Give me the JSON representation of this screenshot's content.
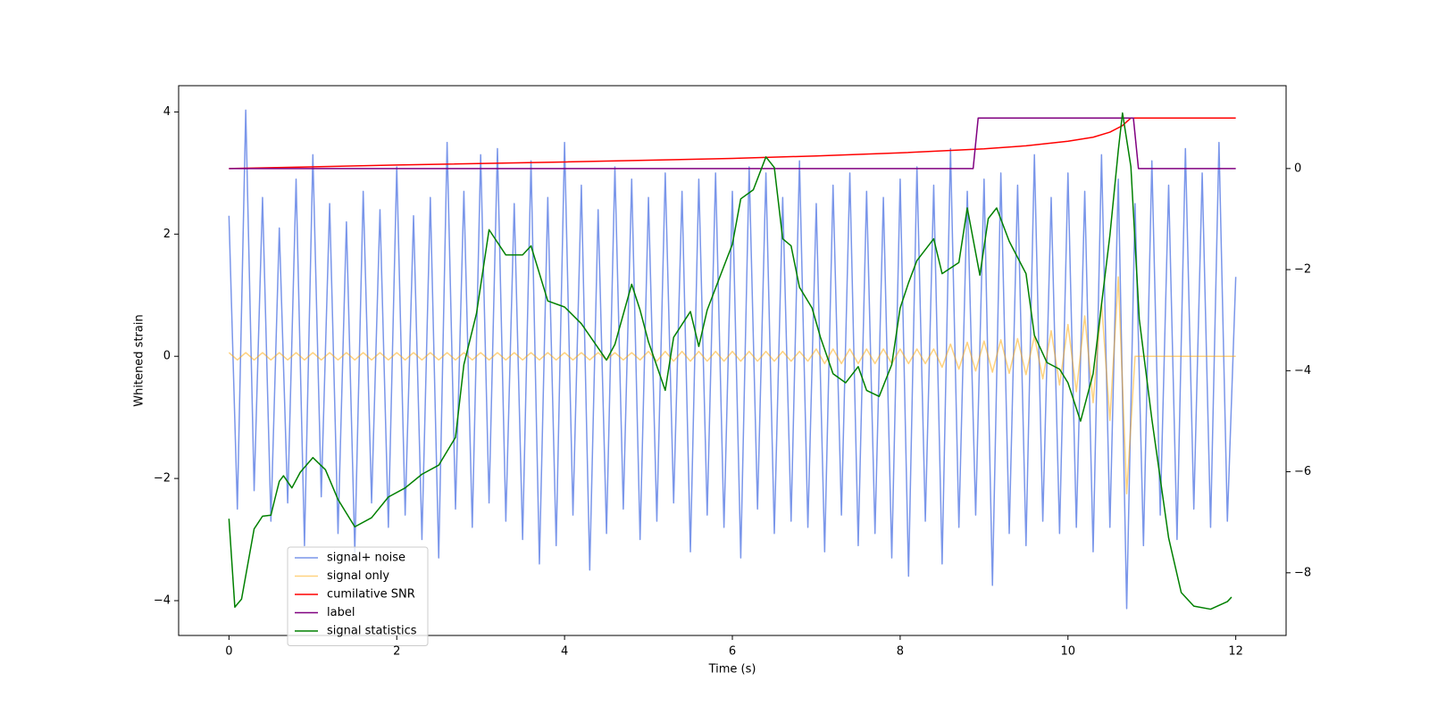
{
  "chart_data": {
    "type": "line",
    "xlabel": "Time (s)",
    "ylabel": "Whitened strain",
    "xlim": [
      -0.6,
      12.6
    ],
    "xticks": [
      0,
      2,
      4,
      6,
      8,
      10,
      12
    ],
    "ylim": [
      -4.57,
      4.43
    ],
    "yticks": [
      {
        "value": -4,
        "label": "−4"
      },
      {
        "value": -2,
        "label": "−2"
      },
      0,
      2,
      4
    ],
    "y2lim": [
      -9.24,
      1.64
    ],
    "y2ticks": [
      {
        "value": -8,
        "label": "−8"
      },
      {
        "value": -6,
        "label": "−6"
      },
      {
        "value": -4,
        "label": "−4"
      },
      {
        "value": -2,
        "label": "−2"
      },
      0
    ],
    "series": [
      {
        "name": "signal+ noise",
        "color": "royalblue",
        "x": [
          0,
          0.1,
          0.2,
          0.3,
          0.4,
          0.5,
          0.6,
          0.7,
          0.8,
          0.9,
          1,
          1.1,
          1.2,
          1.3,
          1.4,
          1.5,
          1.6,
          1.7,
          1.8,
          1.9,
          2,
          2.1,
          2.2,
          2.3,
          2.4,
          2.5,
          2.6,
          2.7,
          2.8,
          2.9,
          3,
          3.1,
          3.2,
          3.3,
          3.4,
          3.5,
          3.6,
          3.7,
          3.8,
          3.9,
          4,
          4.1,
          4.2,
          4.3,
          4.4,
          4.5,
          4.6,
          4.7,
          4.8,
          4.9,
          5,
          5.1,
          5.2,
          5.3,
          5.4,
          5.5,
          5.6,
          5.7,
          5.8,
          5.9,
          6,
          6.1,
          6.2,
          6.3,
          6.4,
          6.5,
          6.6,
          6.7,
          6.8,
          6.9,
          7,
          7.1,
          7.2,
          7.3,
          7.4,
          7.5,
          7.6,
          7.7,
          7.8,
          7.9,
          8,
          8.1,
          8.2,
          8.3,
          8.4,
          8.5,
          8.6,
          8.7,
          8.8,
          8.9,
          9,
          9.1,
          9.2,
          9.3,
          9.4,
          9.5,
          9.6,
          9.7,
          9.8,
          9.9,
          10,
          10.1,
          10.2,
          10.3,
          10.4,
          10.5,
          10.6,
          10.7,
          10.8,
          10.9,
          11,
          11.1,
          11.2,
          11.3,
          11.4,
          11.5,
          11.6,
          11.7,
          11.8,
          11.9,
          12
        ],
        "values": [
          2.3,
          -2.5,
          4.03,
          -2.2,
          2.6,
          -2.7,
          2.1,
          -2.4,
          2.9,
          -3.1,
          3.3,
          -2.3,
          2.5,
          -2.9,
          2.2,
          -3.2,
          2.7,
          -2.4,
          2.4,
          -2.8,
          3.1,
          -2.6,
          2.3,
          -3.0,
          2.6,
          -3.3,
          3.5,
          -2.5,
          2.7,
          -2.8,
          3.3,
          -2.4,
          3.4,
          -2.7,
          2.5,
          -3.0,
          3.2,
          -3.4,
          2.6,
          -3.1,
          3.5,
          -2.6,
          2.8,
          -3.5,
          2.4,
          -2.9,
          3.1,
          -2.5,
          2.9,
          -3.0,
          2.6,
          -2.7,
          3.0,
          -2.4,
          2.7,
          -3.2,
          2.9,
          -2.6,
          3.0,
          -2.8,
          2.7,
          -3.3,
          3.1,
          -2.5,
          3.0,
          -2.9,
          2.6,
          -2.7,
          3.2,
          -2.8,
          2.5,
          -3.2,
          2.8,
          -2.6,
          3.0,
          -3.1,
          2.7,
          -2.9,
          2.6,
          -3.3,
          2.9,
          -3.6,
          3.1,
          -2.7,
          2.8,
          -3.4,
          3.4,
          -2.8,
          2.7,
          -2.6,
          2.9,
          -3.75,
          3.0,
          -2.9,
          2.8,
          -3.1,
          3.3,
          -2.7,
          2.6,
          -2.9,
          3.0,
          -2.8,
          2.7,
          -3.2,
          3.3,
          -2.8,
          2.9,
          -4.13,
          2.5,
          -3.1,
          3.2,
          -2.6,
          2.8,
          -3.0,
          3.4,
          -2.5,
          3.0,
          -2.8,
          3.5,
          -2.7,
          1.3
        ]
      },
      {
        "name": "signal only",
        "color": "orange",
        "x": [
          0,
          0.1,
          0.2,
          0.3,
          0.4,
          0.5,
          0.6,
          0.7,
          0.8,
          0.9,
          1,
          1.1,
          1.2,
          1.3,
          1.4,
          1.5,
          1.6,
          1.7,
          1.8,
          1.9,
          2,
          2.1,
          2.2,
          2.3,
          2.4,
          2.5,
          2.6,
          2.7,
          2.8,
          2.9,
          3,
          3.1,
          3.2,
          3.3,
          3.4,
          3.5,
          3.6,
          3.7,
          3.8,
          3.9,
          4,
          4.1,
          4.2,
          4.3,
          4.4,
          4.5,
          4.6,
          4.7,
          4.8,
          4.9,
          5,
          5.1,
          5.2,
          5.3,
          5.4,
          5.5,
          5.6,
          5.7,
          5.8,
          5.9,
          6,
          6.1,
          6.2,
          6.3,
          6.4,
          6.5,
          6.6,
          6.7,
          6.8,
          6.9,
          7,
          7.1,
          7.2,
          7.3,
          7.4,
          7.5,
          7.6,
          7.7,
          7.8,
          7.9,
          8,
          8.1,
          8.2,
          8.3,
          8.4,
          8.5,
          8.6,
          8.7,
          8.8,
          8.9,
          9,
          9.1,
          9.2,
          9.3,
          9.4,
          9.5,
          9.6,
          9.7,
          9.8,
          9.9,
          10,
          10.1,
          10.2,
          10.3,
          10.4,
          10.5,
          10.6,
          10.7,
          10.8,
          10.9,
          11,
          11.1,
          11.2,
          11.3,
          11.4,
          11.5,
          11.6,
          11.7,
          11.8,
          11.9,
          12
        ],
        "values": [
          0.06,
          -0.06,
          0.06,
          -0.06,
          0.06,
          -0.06,
          0.06,
          -0.06,
          0.06,
          -0.06,
          0.06,
          -0.06,
          0.06,
          -0.06,
          0.06,
          -0.06,
          0.06,
          -0.06,
          0.06,
          -0.06,
          0.06,
          -0.06,
          0.06,
          -0.06,
          0.06,
          -0.06,
          0.06,
          -0.06,
          0.06,
          -0.06,
          0.06,
          -0.06,
          0.06,
          -0.06,
          0.06,
          -0.06,
          0.06,
          -0.06,
          0.06,
          -0.06,
          0.06,
          -0.06,
          0.06,
          -0.06,
          0.06,
          -0.06,
          0.06,
          -0.06,
          0.06,
          -0.06,
          0.08,
          -0.08,
          0.08,
          -0.08,
          0.08,
          -0.08,
          0.08,
          -0.08,
          0.08,
          -0.08,
          0.08,
          -0.08,
          0.08,
          -0.08,
          0.08,
          -0.08,
          0.08,
          -0.08,
          0.08,
          -0.08,
          0.12,
          -0.12,
          0.12,
          -0.12,
          0.12,
          -0.12,
          0.12,
          -0.12,
          0.12,
          -0.12,
          0.12,
          -0.12,
          0.12,
          -0.12,
          0.12,
          -0.18,
          0.2,
          -0.21,
          0.23,
          -0.24,
          0.25,
          -0.26,
          0.27,
          -0.28,
          0.29,
          -0.3,
          0.33,
          -0.37,
          0.42,
          -0.47,
          0.52,
          -0.58,
          0.66,
          -0.76,
          0.88,
          -1.05,
          1.3,
          -2.25,
          0,
          0,
          0,
          0,
          0,
          0,
          0,
          0,
          0,
          0,
          0,
          0,
          0
        ]
      },
      {
        "name": "cumilative SNR",
        "color": "red",
        "axis": "y2",
        "x": [
          0,
          2,
          4,
          6,
          7,
          8,
          9,
          9.5,
          10,
          10.3,
          10.5,
          10.65,
          10.75,
          12
        ],
        "values": [
          0,
          0.07,
          0.13,
          0.2,
          0.25,
          0.31,
          0.39,
          0.45,
          0.54,
          0.62,
          0.72,
          0.85,
          1.0,
          1.0
        ]
      },
      {
        "name": "label",
        "color": "purple",
        "axis": "y2",
        "x": [
          0,
          8.87,
          8.93,
          10.78,
          10.84,
          12
        ],
        "values": [
          0,
          0,
          1,
          1,
          0,
          0
        ]
      },
      {
        "name": "signal statistics",
        "color": "green",
        "axis": "y2",
        "x": [
          0,
          0.07,
          0.15,
          0.3,
          0.4,
          0.5,
          0.55,
          0.6,
          0.65,
          0.75,
          0.85,
          1.0,
          1.15,
          1.3,
          1.5,
          1.7,
          1.9,
          2.1,
          2.3,
          2.5,
          2.7,
          2.8,
          2.95,
          3.1,
          3.3,
          3.5,
          3.6,
          3.8,
          4.0,
          4.2,
          4.5,
          4.6,
          4.8,
          4.9,
          5.0,
          5.2,
          5.3,
          5.5,
          5.6,
          5.7,
          5.9,
          6.0,
          6.1,
          6.25,
          6.4,
          6.5,
          6.6,
          6.7,
          6.8,
          6.95,
          7.05,
          7.2,
          7.35,
          7.5,
          7.6,
          7.75,
          7.9,
          8.0,
          8.1,
          8.2,
          8.4,
          8.5,
          8.7,
          8.8,
          8.95,
          9.05,
          9.15,
          9.3,
          9.5,
          9.6,
          9.75,
          9.9,
          10.0,
          10.15,
          10.3,
          10.5,
          10.6,
          10.65,
          10.75,
          10.85,
          11.0,
          11.2,
          11.35,
          11.5,
          11.7,
          11.9,
          11.95
        ],
        "values": [
          -6.93,
          -8.68,
          -8.52,
          -7.13,
          -6.88,
          -6.86,
          -6.52,
          -6.19,
          -6.08,
          -6.32,
          -6.01,
          -5.72,
          -5.96,
          -6.55,
          -7.09,
          -6.91,
          -6.5,
          -6.32,
          -6.05,
          -5.87,
          -5.32,
          -3.88,
          -2.87,
          -1.21,
          -1.71,
          -1.71,
          -1.53,
          -2.62,
          -2.74,
          -3.07,
          -3.79,
          -3.48,
          -2.29,
          -2.8,
          -3.43,
          -4.39,
          -3.34,
          -2.83,
          -3.52,
          -2.8,
          -1.93,
          -1.5,
          -0.6,
          -0.42,
          0.23,
          0.02,
          -1.39,
          -1.53,
          -2.35,
          -2.76,
          -3.34,
          -4.06,
          -4.24,
          -3.92,
          -4.39,
          -4.51,
          -3.88,
          -2.76,
          -2.26,
          -1.82,
          -1.39,
          -2.08,
          -1.86,
          -0.78,
          -2.11,
          -0.99,
          -0.78,
          -1.44,
          -2.08,
          -3.3,
          -3.84,
          -3.97,
          -4.24,
          -5.0,
          -4.06,
          -1.32,
          0.36,
          1.1,
          0.04,
          -2.98,
          -4.96,
          -7.31,
          -8.39,
          -8.66,
          -8.72,
          -8.57,
          -8.48
        ]
      }
    ]
  }
}
